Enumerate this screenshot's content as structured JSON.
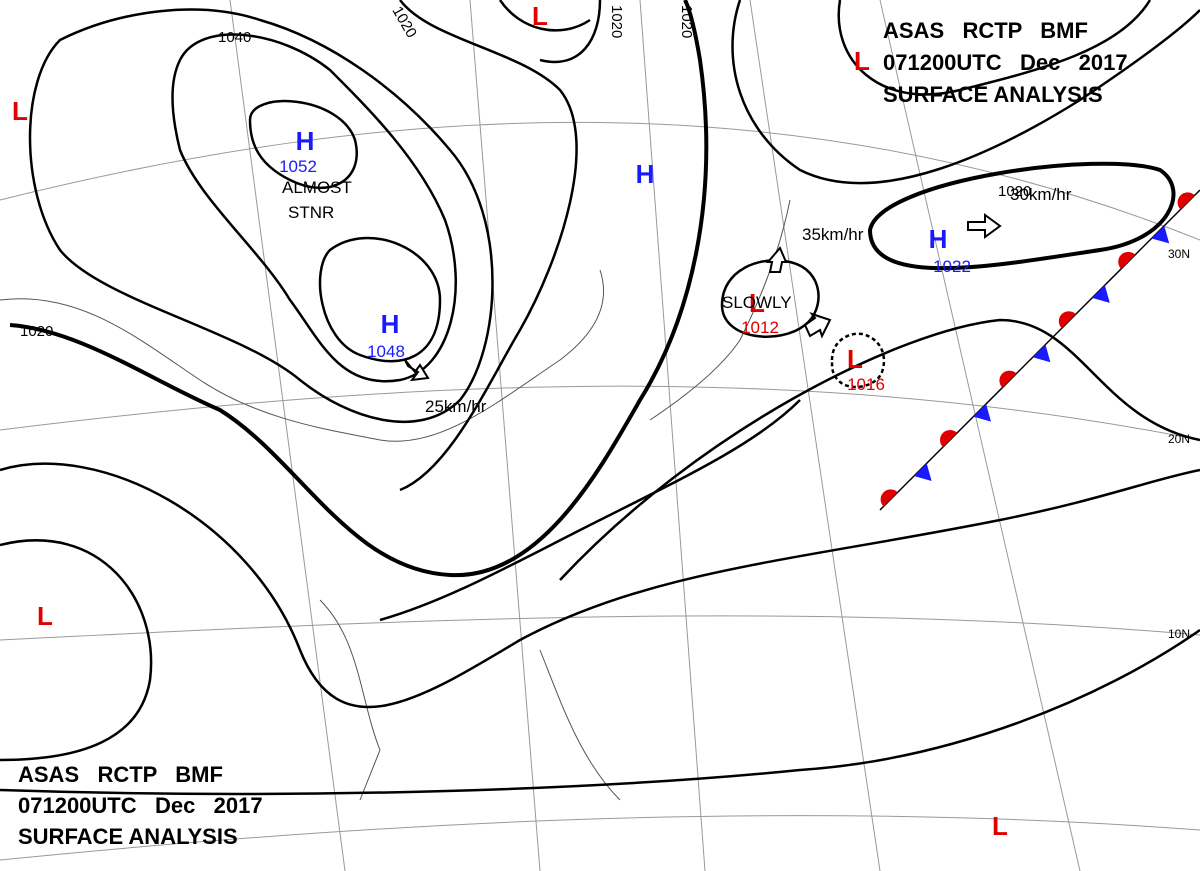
{
  "header_top": {
    "lines": [
      "ASAS   RCTP   BMF",
      "071200UTC   Dec   2017",
      "SURFACE ANALYSIS"
    ]
  },
  "header_bottom": {
    "lines": [
      "ASAS   RCTP   BMF",
      "071200UTC   Dec   2017",
      "SURFACE ANALYSIS"
    ]
  },
  "pressure_centers": [
    {
      "type": "H",
      "pressure": 1052
    },
    {
      "type": "H",
      "pressure": 1048
    },
    {
      "type": "H"
    },
    {
      "type": "H",
      "pressure": 1022
    },
    {
      "type": "L",
      "pressure": 1012
    },
    {
      "type": "L",
      "pressure": 1016
    },
    {
      "type": "L"
    },
    {
      "type": "L"
    },
    {
      "type": "L"
    },
    {
      "type": "L"
    },
    {
      "type": "L"
    }
  ],
  "isobar_labels": [
    1040,
    1020,
    1020,
    1020,
    1020,
    1020
  ],
  "motion_labels": [
    [
      "ALMOST",
      "STNR"
    ],
    "25km/hr",
    "35km/hr",
    "30km/hr",
    "SLOWLY"
  ],
  "latitude_labels": [
    "30N",
    "20N",
    "10N"
  ]
}
